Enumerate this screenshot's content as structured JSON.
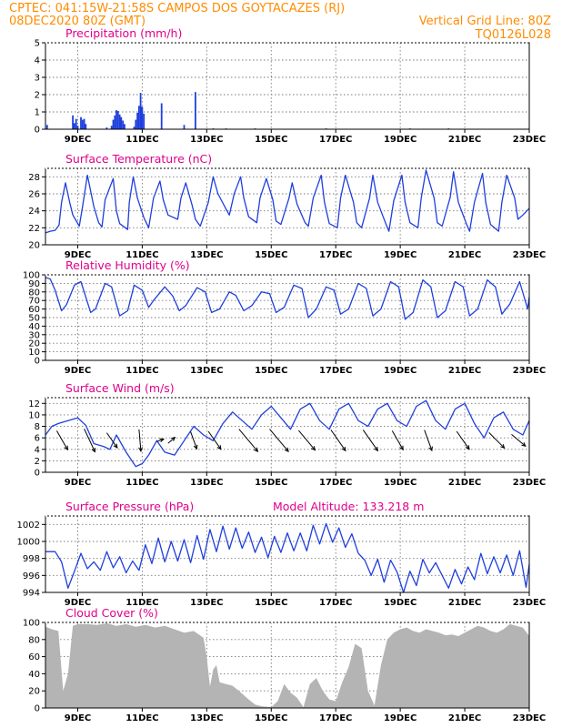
{
  "header": {
    "line1": "CPTEC:   041:15W-21:58S   CAMPOS DOS GOYTACAZES (RJ)",
    "line2_left": "08DEC2020 80Z (GMT)",
    "line2_right": "Vertical Grid Line: 80Z",
    "line3_right": "TQ0126L028"
  },
  "colors": {
    "header": "#ff8c00",
    "panel_title": "#e0008c",
    "series": "#1f3fdc",
    "cloud": "#b4b4b4"
  },
  "x_axis": {
    "ticks": [
      "9DEC",
      "11DEC",
      "13DEC",
      "15DEC",
      "17DEC",
      "19DEC",
      "21DEC",
      "23DEC"
    ]
  },
  "chart_data": [
    {
      "type": "bar",
      "title": "Precipitation (mm/h)",
      "ylim": [
        0,
        5
      ],
      "yticks": [
        0,
        1,
        2,
        3,
        4,
        5
      ],
      "x_range_days": [
        8.0,
        23.0
      ],
      "bars": [
        [
          8.05,
          0.25
        ],
        [
          8.85,
          0.8
        ],
        [
          8.9,
          0.35
        ],
        [
          8.95,
          0.6
        ],
        [
          9.0,
          0.2
        ],
        [
          9.1,
          0.7
        ],
        [
          9.15,
          0.55
        ],
        [
          9.2,
          0.6
        ],
        [
          9.25,
          0.3
        ],
        [
          9.9,
          0.1
        ],
        [
          10.05,
          0.2
        ],
        [
          10.1,
          0.55
        ],
        [
          10.15,
          0.8
        ],
        [
          10.2,
          1.1
        ],
        [
          10.25,
          1.05
        ],
        [
          10.3,
          0.85
        ],
        [
          10.35,
          0.7
        ],
        [
          10.4,
          0.5
        ],
        [
          10.45,
          0.3
        ],
        [
          10.75,
          0.15
        ],
        [
          10.8,
          0.55
        ],
        [
          10.85,
          0.95
        ],
        [
          10.9,
          1.35
        ],
        [
          10.95,
          2.1
        ],
        [
          11.0,
          1.3
        ],
        [
          11.05,
          0.9
        ],
        [
          11.6,
          1.5
        ],
        [
          12.3,
          0.25
        ],
        [
          12.65,
          2.15
        ],
        [
          13.2,
          0.05
        ],
        [
          13.6,
          0.05
        ],
        [
          14.5,
          0.05
        ],
        [
          16.7,
          0.05
        ],
        [
          19.3,
          0.05
        ],
        [
          20.5,
          0.05
        ]
      ]
    },
    {
      "type": "line",
      "title": "Surface Temperature (nC)",
      "ylim": [
        20,
        29
      ],
      "yticks": [
        20,
        22,
        24,
        26,
        28
      ],
      "x": [
        8.0,
        8.15,
        8.3,
        8.42,
        8.5,
        8.62,
        8.75,
        8.85,
        9.05,
        9.15,
        9.3,
        9.5,
        9.65,
        9.75,
        9.85,
        10.1,
        10.2,
        10.3,
        10.55,
        10.6,
        10.72,
        10.85,
        11.05,
        11.2,
        11.35,
        11.55,
        11.65,
        11.8,
        12.1,
        12.2,
        12.35,
        12.55,
        12.65,
        12.8,
        13.05,
        13.2,
        13.35,
        13.6,
        13.7,
        13.85,
        14.05,
        14.15,
        14.3,
        14.55,
        14.65,
        14.85,
        15.05,
        15.15,
        15.3,
        15.55,
        15.65,
        15.8,
        16.05,
        16.15,
        16.3,
        16.55,
        16.65,
        16.8,
        17.05,
        17.15,
        17.3,
        17.55,
        17.65,
        17.8,
        18.05,
        18.15,
        18.3,
        18.55,
        18.65,
        18.8,
        19.05,
        19.15,
        19.3,
        19.55,
        19.65,
        19.8,
        20.05,
        20.15,
        20.3,
        20.55,
        20.65,
        20.8,
        21.05,
        21.15,
        21.3,
        21.55,
        21.65,
        21.8,
        22.05,
        22.15,
        22.3,
        22.55,
        22.65,
        22.8,
        23.0
      ],
      "y": [
        21.4,
        21.6,
        21.7,
        22.3,
        25.0,
        27.3,
        25.0,
        23.5,
        22.2,
        24.5,
        28.2,
        24.5,
        22.6,
        22.1,
        25.3,
        27.8,
        24.0,
        22.5,
        21.8,
        25.0,
        28.0,
        25.5,
        23.2,
        22.0,
        25.5,
        27.5,
        25.3,
        23.5,
        23.0,
        25.5,
        27.3,
        24.6,
        23.0,
        22.2,
        25.0,
        28.0,
        26.0,
        24.2,
        23.5,
        26.0,
        28.0,
        25.5,
        23.3,
        22.6,
        25.5,
        27.8,
        25.3,
        22.8,
        22.4,
        25.5,
        27.3,
        24.8,
        22.6,
        22.2,
        25.5,
        28.2,
        25.0,
        22.5,
        22.0,
        25.5,
        28.2,
        25.0,
        22.6,
        22.0,
        25.5,
        28.2,
        25.0,
        22.5,
        21.6,
        25.2,
        28.2,
        25.0,
        22.6,
        22.0,
        25.5,
        28.8,
        25.5,
        22.6,
        22.2,
        25.6,
        28.6,
        25.0,
        22.5,
        21.6,
        25.0,
        28.4,
        25.0,
        22.4,
        21.6,
        25.0,
        28.2,
        25.5,
        23.0,
        23.5,
        24.3
      ]
    },
    {
      "type": "line",
      "title": "Relative Humidity (%)",
      "ylim": [
        0,
        100
      ],
      "yticks": [
        0,
        10,
        20,
        30,
        40,
        50,
        60,
        70,
        80,
        90,
        100
      ],
      "x": [
        8.0,
        8.15,
        8.3,
        8.5,
        8.65,
        8.9,
        9.1,
        9.4,
        9.55,
        9.85,
        10.05,
        10.3,
        10.55,
        10.75,
        11.0,
        11.2,
        11.35,
        11.7,
        11.95,
        12.15,
        12.35,
        12.7,
        12.95,
        13.15,
        13.4,
        13.7,
        13.9,
        14.15,
        14.4,
        14.7,
        14.95,
        15.15,
        15.4,
        15.7,
        15.95,
        16.15,
        16.4,
        16.7,
        16.95,
        17.15,
        17.4,
        17.7,
        17.95,
        18.15,
        18.4,
        18.7,
        18.95,
        19.15,
        19.4,
        19.7,
        19.95,
        20.15,
        20.4,
        20.7,
        20.95,
        21.15,
        21.4,
        21.7,
        21.95,
        22.15,
        22.4,
        22.7,
        22.95,
        23.0
      ],
      "y": [
        97,
        95,
        82,
        58,
        65,
        88,
        92,
        56,
        60,
        90,
        86,
        52,
        58,
        88,
        82,
        62,
        70,
        86,
        75,
        58,
        64,
        85,
        80,
        56,
        60,
        80,
        76,
        58,
        64,
        80,
        78,
        56,
        62,
        88,
        84,
        50,
        60,
        86,
        82,
        54,
        60,
        90,
        84,
        52,
        60,
        92,
        86,
        48,
        56,
        94,
        86,
        50,
        58,
        92,
        86,
        52,
        60,
        94,
        86,
        54,
        66,
        92,
        60,
        74
      ]
    },
    {
      "type": "line",
      "title": "Surface Wind (m/s)",
      "ylim": [
        0,
        13
      ],
      "yticks": [
        0,
        2,
        4,
        6,
        8,
        10,
        12
      ],
      "x": [
        8.0,
        8.2,
        8.4,
        8.7,
        9.0,
        9.25,
        9.5,
        9.8,
        10.0,
        10.2,
        10.5,
        10.8,
        11.0,
        11.2,
        11.45,
        11.7,
        12.0,
        12.3,
        12.6,
        12.9,
        13.2,
        13.5,
        13.8,
        14.1,
        14.4,
        14.7,
        15.0,
        15.3,
        15.6,
        15.9,
        16.2,
        16.5,
        16.8,
        17.1,
        17.4,
        17.7,
        18.0,
        18.3,
        18.6,
        18.9,
        19.2,
        19.5,
        19.8,
        20.1,
        20.4,
        20.7,
        21.0,
        21.3,
        21.6,
        21.9,
        22.2,
        22.5,
        22.8,
        23.0
      ],
      "y": [
        6.5,
        8.0,
        8.5,
        9.0,
        9.5,
        8.2,
        5.0,
        4.5,
        4.0,
        6.5,
        3.5,
        1.0,
        1.5,
        3.0,
        5.5,
        3.5,
        3.0,
        5.5,
        8.0,
        6.5,
        5.5,
        8.5,
        10.5,
        9.0,
        7.5,
        10.0,
        11.5,
        9.5,
        7.5,
        11.0,
        12.0,
        9.0,
        7.5,
        11.0,
        12.0,
        9.0,
        8.0,
        11.0,
        12.0,
        9.0,
        8.0,
        11.5,
        12.5,
        9.0,
        7.5,
        11.0,
        12.0,
        8.5,
        6.0,
        9.5,
        10.5,
        7.5,
        6.5,
        9.0
      ],
      "vectors": [
        [
          8.35,
          6,
          120
        ],
        [
          9.2,
          7,
          115
        ],
        [
          9.9,
          5,
          125
        ],
        [
          10.9,
          6,
          95
        ],
        [
          11.45,
          2,
          200
        ],
        [
          11.8,
          2.5,
          220
        ],
        [
          12.5,
          5,
          110
        ],
        [
          13.05,
          6,
          125
        ],
        [
          14.0,
          8,
          130
        ],
        [
          14.95,
          8,
          130
        ],
        [
          15.85,
          7,
          130
        ],
        [
          16.85,
          7,
          125
        ],
        [
          17.85,
          7,
          125
        ],
        [
          18.75,
          6,
          120
        ],
        [
          19.75,
          6,
          110
        ],
        [
          20.75,
          6,
          125
        ],
        [
          21.75,
          6,
          135
        ],
        [
          22.45,
          5,
          140
        ]
      ]
    },
    {
      "type": "line",
      "title": "Surface Pressure (hPa)",
      "annotation": "Model Altitude: 133.218 m",
      "ylim": [
        994,
        1003
      ],
      "yticks": [
        994,
        996,
        998,
        1000,
        1002
      ],
      "x": [
        8.0,
        8.3,
        8.5,
        8.7,
        8.9,
        9.1,
        9.3,
        9.5,
        9.7,
        9.9,
        10.1,
        10.3,
        10.5,
        10.7,
        10.9,
        11.1,
        11.3,
        11.5,
        11.7,
        11.9,
        12.1,
        12.3,
        12.5,
        12.7,
        12.9,
        13.1,
        13.3,
        13.5,
        13.7,
        13.9,
        14.1,
        14.3,
        14.5,
        14.7,
        14.9,
        15.1,
        15.3,
        15.5,
        15.7,
        15.9,
        16.1,
        16.3,
        16.5,
        16.7,
        16.9,
        17.1,
        17.3,
        17.5,
        17.7,
        17.9,
        18.1,
        18.3,
        18.5,
        18.7,
        18.9,
        19.1,
        19.3,
        19.5,
        19.7,
        19.9,
        20.1,
        20.3,
        20.5,
        20.7,
        20.9,
        21.1,
        21.3,
        21.5,
        21.7,
        21.9,
        22.1,
        22.3,
        22.5,
        22.7,
        22.9,
        23.0
      ],
      "y": [
        998.8,
        998.8,
        997.6,
        994.5,
        996.5,
        998.6,
        996.8,
        997.6,
        996.6,
        998.8,
        996.9,
        998.2,
        996.3,
        997.7,
        996.6,
        999.6,
        997.4,
        1000.4,
        997.6,
        1000.0,
        997.7,
        1000.2,
        997.5,
        1000.7,
        997.9,
        1001.4,
        998.8,
        1001.8,
        999.1,
        1001.6,
        999.2,
        1001.1,
        998.7,
        1000.5,
        998.1,
        1000.6,
        998.7,
        1001.0,
        998.9,
        1001.0,
        998.9,
        1001.9,
        999.7,
        1002.1,
        999.9,
        1001.6,
        999.3,
        1000.9,
        998.6,
        997.8,
        996.0,
        997.9,
        995.2,
        997.8,
        996.4,
        994.0,
        996.5,
        994.8,
        997.9,
        996.3,
        997.5,
        996.0,
        994.5,
        996.7,
        995.0,
        997.0,
        995.5,
        998.6,
        996.2,
        998.2,
        996.3,
        998.4,
        996.0,
        998.9,
        994.6,
        997.3
      ]
    },
    {
      "type": "area",
      "title": "Cloud Cover (%)",
      "ylim": [
        0,
        100
      ],
      "yticks": [
        0,
        20,
        40,
        60,
        80,
        100
      ],
      "x": [
        8.0,
        8.2,
        8.4,
        8.55,
        8.7,
        8.85,
        9.0,
        9.3,
        9.6,
        9.9,
        10.2,
        10.5,
        10.8,
        11.1,
        11.4,
        11.7,
        12.0,
        12.3,
        12.6,
        12.9,
        13.0,
        13.1,
        13.2,
        13.3,
        13.4,
        13.6,
        13.8,
        14.0,
        14.3,
        14.5,
        14.7,
        15.0,
        15.2,
        15.4,
        15.6,
        15.8,
        16.0,
        16.2,
        16.4,
        16.6,
        16.8,
        17.0,
        17.2,
        17.4,
        17.6,
        17.8,
        18.0,
        18.2,
        18.4,
        18.6,
        18.8,
        19.0,
        19.2,
        19.4,
        19.6,
        19.8,
        20.0,
        20.2,
        20.4,
        20.6,
        20.8,
        21.0,
        21.2,
        21.4,
        21.6,
        21.8,
        22.0,
        22.2,
        22.4,
        22.6,
        22.8,
        23.0
      ],
      "y": [
        95,
        92,
        90,
        20,
        40,
        96,
        98,
        98,
        97,
        99,
        96,
        98,
        95,
        97,
        94,
        96,
        92,
        88,
        90,
        82,
        60,
        25,
        45,
        50,
        30,
        28,
        26,
        20,
        10,
        4,
        2,
        1,
        8,
        28,
        18,
        12,
        1,
        28,
        35,
        20,
        10,
        8,
        30,
        48,
        75,
        70,
        20,
        3,
        50,
        80,
        88,
        92,
        94,
        90,
        88,
        92,
        90,
        88,
        85,
        86,
        84,
        88,
        92,
        96,
        94,
        90,
        88,
        92,
        98,
        96,
        94,
        84
      ]
    }
  ]
}
